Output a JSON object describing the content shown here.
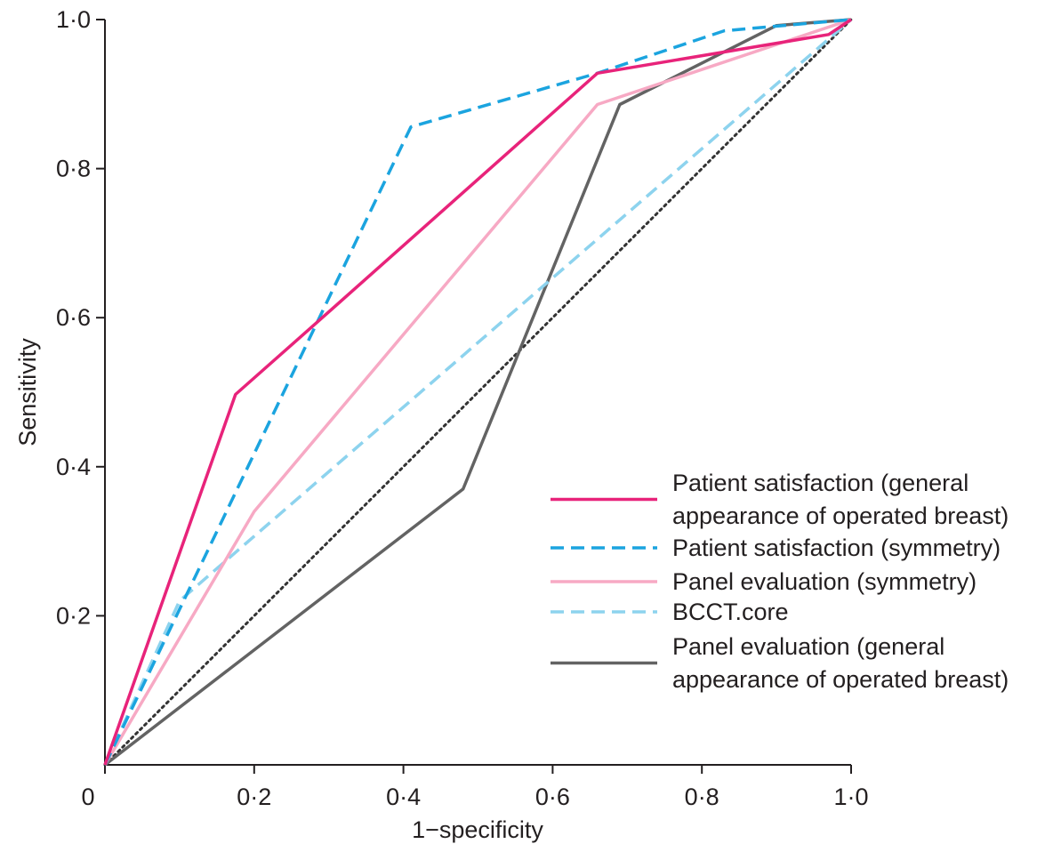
{
  "chart_data": {
    "type": "line",
    "title": "",
    "xlabel": "1−specificity",
    "ylabel": "Sensitivity",
    "xlim": [
      0,
      1
    ],
    "ylim": [
      0,
      1
    ],
    "x_ticks": [
      {
        "value": 0,
        "label": "0"
      },
      {
        "value": 0.2,
        "label": "0·2"
      },
      {
        "value": 0.4,
        "label": "0·4"
      },
      {
        "value": 0.6,
        "label": "0·6"
      },
      {
        "value": 0.8,
        "label": "0·8"
      },
      {
        "value": 1.0,
        "label": "1·0"
      }
    ],
    "y_ticks": [
      {
        "value": 0.2,
        "label": "0·2"
      },
      {
        "value": 0.4,
        "label": "0·4"
      },
      {
        "value": 0.6,
        "label": "0·6"
      },
      {
        "value": 0.8,
        "label": "0·8"
      },
      {
        "value": 1.0,
        "label": "1·0"
      }
    ],
    "grid": false,
    "legend_position": "bottom-right",
    "reference_line": {
      "points": [
        [
          0,
          0
        ],
        [
          1,
          1
        ]
      ],
      "color": "#333333",
      "style": "dotted"
    },
    "series": [
      {
        "name": "Patient satisfaction (general appearance of operated breast)",
        "legend_lines": [
          "Patient satisfaction (general",
          "appearance of operated breast)"
        ],
        "color": "#e8237a",
        "style": "solid",
        "points": [
          [
            0,
            0
          ],
          [
            0.175,
            0.497
          ],
          [
            0.28,
            0.59
          ],
          [
            0.66,
            0.928
          ],
          [
            0.97,
            0.98
          ],
          [
            1.0,
            1.0
          ]
        ]
      },
      {
        "name": "Patient satisfaction (symmetry)",
        "legend_lines": [
          "Patient satisfaction (symmetry)"
        ],
        "color": "#1ba4df",
        "style": "dashed",
        "points": [
          [
            0,
            0
          ],
          [
            0.41,
            0.856
          ],
          [
            0.66,
            0.928
          ],
          [
            0.83,
            0.985
          ],
          [
            1.0,
            1.0
          ]
        ]
      },
      {
        "name": "Panel evaluation (symmetry)",
        "legend_lines": [
          "Panel evaluation (symmetry)"
        ],
        "color": "#f7a9c4",
        "style": "solid",
        "points": [
          [
            0,
            0
          ],
          [
            0.2,
            0.34
          ],
          [
            0.66,
            0.886
          ],
          [
            1.0,
            1.0
          ]
        ]
      },
      {
        "name": "BCCT.core",
        "legend_lines": [
          "BCCT.core"
        ],
        "color": "#8dd3ee",
        "style": "dashed",
        "points": [
          [
            0,
            0
          ],
          [
            0.1,
            0.22
          ],
          [
            1.0,
            1.0
          ]
        ]
      },
      {
        "name": "Panel evaluation (general appearance of operated breast)",
        "legend_lines": [
          "Panel evaluation (general",
          "appearance of operated breast)"
        ],
        "color": "#636363",
        "style": "solid",
        "points": [
          [
            0,
            0
          ],
          [
            0.48,
            0.37
          ],
          [
            0.69,
            0.886
          ],
          [
            0.9,
            0.992
          ],
          [
            1.0,
            1.0
          ]
        ]
      }
    ]
  }
}
